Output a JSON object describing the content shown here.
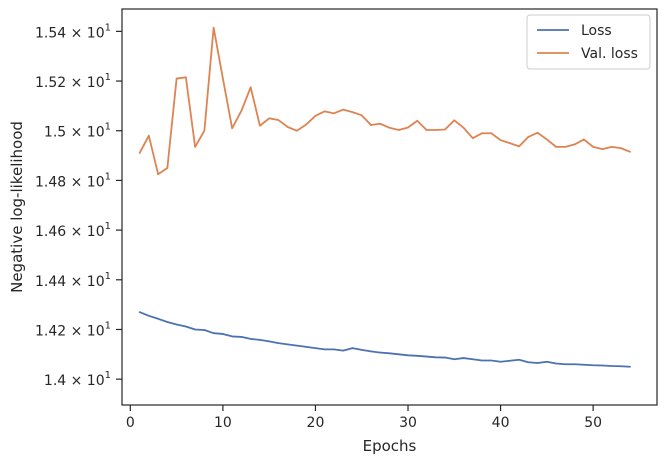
{
  "chart_data": {
    "type": "line",
    "xlabel": "Epochs",
    "ylabel": "Negative log-likelihood",
    "xlim": [
      -0.9,
      56.9
    ],
    "ylim": [
      13.896,
      15.49
    ],
    "xticks": [
      0,
      10,
      20,
      30,
      40,
      50
    ],
    "yticks": [
      {
        "value": 14.0,
        "mantissa": "1.4",
        "suffix": " × 10",
        "exp": "1"
      },
      {
        "value": 14.2,
        "mantissa": "1.42",
        "suffix": " × 10",
        "exp": "1"
      },
      {
        "value": 14.4,
        "mantissa": "1.44",
        "suffix": " × 10",
        "exp": "1"
      },
      {
        "value": 14.6,
        "mantissa": "1.46",
        "suffix": " × 10",
        "exp": "1"
      },
      {
        "value": 14.8,
        "mantissa": "1.48",
        "suffix": " × 10",
        "exp": "1"
      },
      {
        "value": 15.0,
        "mantissa": "1.5",
        "suffix": " × 10",
        "exp": "1"
      },
      {
        "value": 15.2,
        "mantissa": "1.52",
        "suffix": " × 10",
        "exp": "1"
      },
      {
        "value": 15.4,
        "mantissa": "1.54",
        "suffix": " × 10",
        "exp": "1"
      }
    ],
    "grid": false,
    "legend_position": "top-right",
    "x": [
      1,
      2,
      3,
      4,
      5,
      6,
      7,
      8,
      9,
      10,
      11,
      12,
      13,
      14,
      15,
      16,
      17,
      18,
      19,
      20,
      21,
      22,
      23,
      24,
      25,
      26,
      27,
      28,
      29,
      30,
      31,
      32,
      33,
      34,
      35,
      36,
      37,
      38,
      39,
      40,
      41,
      42,
      43,
      44,
      45,
      46,
      47,
      48,
      49,
      50,
      51,
      52,
      53,
      54
    ],
    "series": [
      {
        "name": "Loss",
        "color": "#4c72b0",
        "values": [
          14.27,
          14.255,
          14.243,
          14.23,
          14.22,
          14.212,
          14.2,
          14.198,
          14.185,
          14.182,
          14.172,
          14.17,
          14.162,
          14.158,
          14.152,
          14.145,
          14.14,
          14.135,
          14.13,
          14.125,
          14.12,
          14.12,
          14.115,
          14.125,
          14.118,
          14.112,
          14.107,
          14.104,
          14.1,
          14.096,
          14.094,
          14.091,
          14.088,
          14.087,
          14.08,
          14.085,
          14.08,
          14.075,
          14.075,
          14.07,
          14.074,
          14.078,
          14.068,
          14.065,
          14.07,
          14.063,
          14.06,
          14.06,
          14.058,
          14.056,
          14.055,
          14.053,
          14.052,
          14.05
        ]
      },
      {
        "name": "Val. loss",
        "color": "#dd8452",
        "values": [
          14.91,
          14.98,
          14.825,
          14.85,
          15.21,
          15.215,
          14.935,
          15.0,
          15.415,
          15.21,
          15.01,
          15.08,
          15.175,
          15.02,
          15.05,
          15.043,
          15.015,
          15.0,
          15.025,
          15.06,
          15.078,
          15.07,
          15.085,
          15.075,
          15.062,
          15.023,
          15.028,
          15.012,
          15.003,
          15.013,
          15.04,
          15.003,
          15.003,
          15.005,
          15.042,
          15.012,
          14.97,
          14.99,
          14.99,
          14.962,
          14.95,
          14.937,
          14.975,
          14.992,
          14.965,
          14.935,
          14.935,
          14.945,
          14.965,
          14.935,
          14.926,
          14.935,
          14.93,
          14.915
        ]
      }
    ]
  }
}
